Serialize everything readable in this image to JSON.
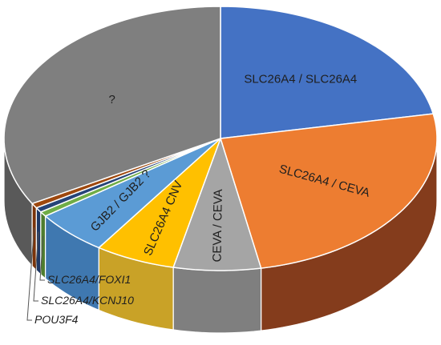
{
  "chart_data": {
    "type": "pie",
    "style": "3d",
    "slices": [
      {
        "label": "SLC26A4 / SLC26A4",
        "value": 22.0,
        "color": "#4472C4",
        "side_color": "#2F5597",
        "label_style": "normal",
        "show_label": true
      },
      {
        "label": "SLC26A4 / CEVA",
        "value": 25.0,
        "color": "#ED7D31",
        "side_color": "#843C1C",
        "label_style": "normal",
        "show_label": true
      },
      {
        "label": "CEVA / CEVA",
        "value": 6.5,
        "color": "#A5A5A5",
        "side_color": "#7F7F7F",
        "label_style": "normal",
        "show_label": true
      },
      {
        "label": "SLC26A4 CNV",
        "value": 6.0,
        "color": "#FFC000",
        "side_color": "#C9A227",
        "label_style": "normal",
        "show_label": true
      },
      {
        "label": "GJB2 / GJB2 ?",
        "value": 5.5,
        "color": "#5B9BD5",
        "side_color": "#3F78B0",
        "label_style": "normal",
        "show_label": true
      },
      {
        "label": "SLC26A4/FOXI1",
        "value": 0.6,
        "color": "#70AD47",
        "side_color": "#4E7D2F",
        "label_style": "italic",
        "show_label": false
      },
      {
        "label": "SLC26A4/KCNJ10",
        "value": 0.6,
        "color": "#264478",
        "side_color": "#1F3864",
        "label_style": "italic",
        "show_label": false
      },
      {
        "label": "POU3F4",
        "value": 0.6,
        "color": "#9E480E",
        "side_color": "#7A3309",
        "label_style": "italic",
        "show_label": false
      },
      {
        "label": "?",
        "value": 33.2,
        "color": "#7F7F7F",
        "side_color": "#595959",
        "label_style": "normal",
        "show_label": true
      }
    ],
    "callouts": [
      "SLC26A4/FOXI1",
      "SLC26A4/KCNJ10",
      "POU3F4"
    ],
    "legend": "none",
    "title": ""
  }
}
